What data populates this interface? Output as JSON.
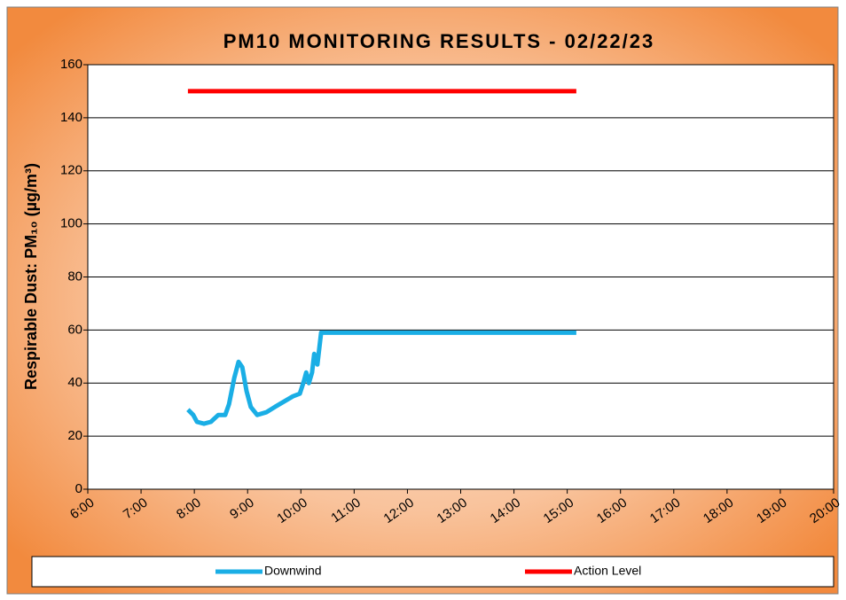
{
  "chart_data": {
    "type": "line",
    "title": "PM10 MONITORING RESULTS - 02/22/23",
    "y_label": "Respirable Dust: PM₁₀  (µg/m³)",
    "xlim": [
      6,
      20
    ],
    "xticks": [
      {
        "value": 6,
        "label": "6:00"
      },
      {
        "value": 7,
        "label": "7:00"
      },
      {
        "value": 8,
        "label": "8:00"
      },
      {
        "value": 9,
        "label": "9:00"
      },
      {
        "value": 10,
        "label": "10:00"
      },
      {
        "value": 11,
        "label": "11:00"
      },
      {
        "value": 12,
        "label": "12:00"
      },
      {
        "value": 13,
        "label": "13:00"
      },
      {
        "value": 14,
        "label": "14:00"
      },
      {
        "value": 15,
        "label": "15:00"
      },
      {
        "value": 16,
        "label": "16:00"
      },
      {
        "value": 17,
        "label": "17:00"
      },
      {
        "value": 18,
        "label": "18:00"
      },
      {
        "value": 19,
        "label": "19:00"
      },
      {
        "value": 20,
        "label": "20:00"
      }
    ],
    "ylim": [
      0,
      160
    ],
    "yticks": [
      0,
      20,
      40,
      60,
      80,
      100,
      120,
      140,
      160
    ],
    "grid": true,
    "legend": "bottom",
    "series": [
      {
        "name": "Downwind",
        "color": "#1aaee5",
        "x": [
          7.88,
          7.98,
          8.05,
          8.18,
          8.31,
          8.45,
          8.58,
          8.65,
          8.75,
          8.83,
          8.9,
          8.98,
          9.06,
          9.18,
          9.35,
          9.51,
          9.68,
          9.85,
          9.98,
          10.06,
          10.1,
          10.15,
          10.21,
          10.25,
          10.31,
          10.38,
          15.17
        ],
        "values": [
          30,
          28,
          25.4,
          24.7,
          25.4,
          28,
          28,
          32,
          42,
          48,
          46,
          37,
          31,
          28,
          29,
          31,
          33,
          35,
          36,
          41,
          44,
          40,
          44,
          51,
          47,
          59,
          59
        ]
      },
      {
        "name": "Action Level",
        "color": "#ff0000",
        "x": [
          7.88,
          15.17
        ],
        "values": [
          150,
          150
        ]
      }
    ]
  }
}
